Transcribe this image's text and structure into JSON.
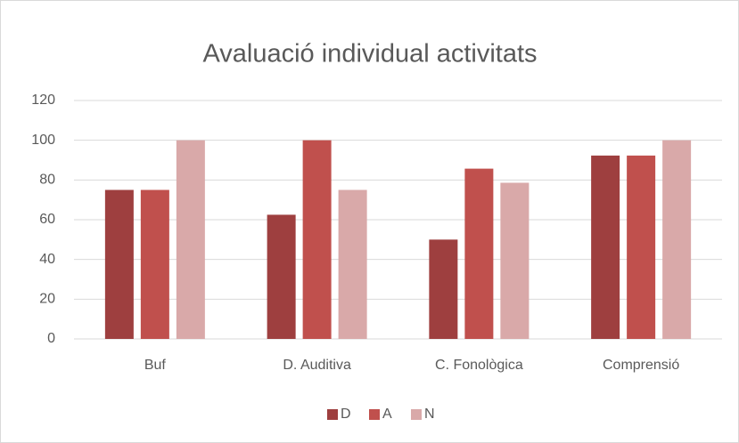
{
  "chart_data": {
    "type": "bar",
    "title": "Avaluació individual activitats",
    "categories": [
      "Buf",
      "D. Auditiva",
      "C. Fonològica",
      "Comprensió"
    ],
    "series": [
      {
        "name": "D",
        "color": "#9e3f3f",
        "values": [
          75,
          62.5,
          50,
          92.3
        ]
      },
      {
        "name": "A",
        "color": "#c0504d",
        "values": [
          75,
          100,
          85.7,
          92.3
        ]
      },
      {
        "name": "N",
        "color": "#d9a9a9",
        "values": [
          100,
          75,
          78.6,
          100
        ]
      }
    ],
    "ylim": [
      0,
      120
    ],
    "yticks": [
      0,
      20,
      40,
      60,
      80,
      100,
      120
    ],
    "grid": true,
    "legend": "bottom"
  }
}
